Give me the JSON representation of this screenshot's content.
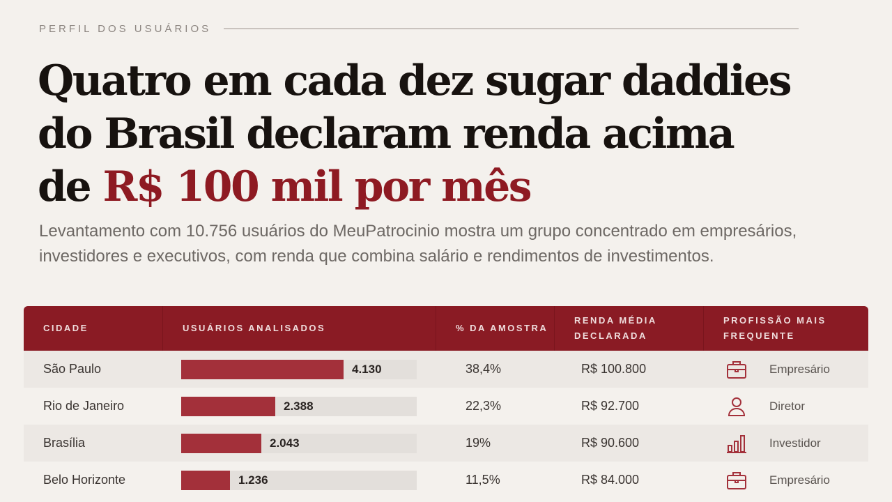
{
  "kicker": "PERFIL DOS USUÁRIOS",
  "headline": {
    "line1": "Quatro em cada dez sugar daddies",
    "line2": "do Brasil declaram renda acima",
    "line3_prefix": "de ",
    "line3_accent": "R$ 100 mil por mês"
  },
  "subhead": "Levantamento com 10.756 usuários do MeuPatrocinio mostra um grupo concentrado em empresários, investidores e executivos, com renda que combina salário e rendimentos de investimentos.",
  "colors": {
    "header_bg": "#8a1b24",
    "accent": "#8e1a22",
    "bar_fill": "#a3303a",
    "bar_track": "#e3dfdb"
  },
  "chart_data": {
    "type": "table",
    "columns": [
      "CIDADE",
      "USUÁRIOS ANALISADOS",
      "% DA AMOSTRA",
      "RENDA MÉDIA DECLARADA",
      "PROFISSÃO MAIS FREQUENTE"
    ],
    "bar_max": 6000,
    "rows": [
      {
        "city": "São Paulo",
        "users": 4130,
        "users_label": "4.130",
        "pct": "38,4%",
        "income": "R$ 100.800",
        "profession": "Empresário",
        "icon": "briefcase-icon"
      },
      {
        "city": "Rio de Janeiro",
        "users": 2388,
        "users_label": "2.388",
        "pct": "22,3%",
        "income": "R$ 92.700",
        "profession": "Diretor",
        "icon": "person-icon"
      },
      {
        "city": "Brasília",
        "users": 2043,
        "users_label": "2.043",
        "pct": "19%",
        "income": "R$ 90.600",
        "profession": "Investidor",
        "icon": "bar-chart-icon"
      },
      {
        "city": "Belo Horizonte",
        "users": 1236,
        "users_label": "1.236",
        "pct": "11,5%",
        "income": "R$ 84.000",
        "profession": "Empresário",
        "icon": "briefcase-icon"
      }
    ]
  }
}
